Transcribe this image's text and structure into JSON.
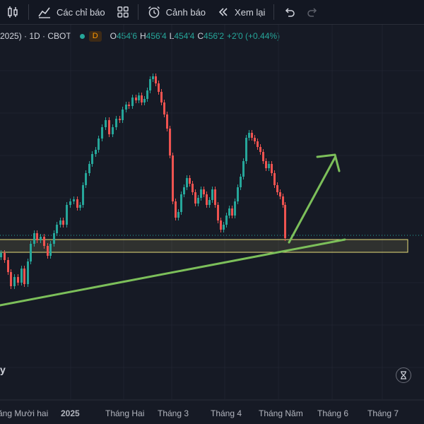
{
  "toolbar": {
    "indicators_label": "Các chỉ báo",
    "alerts_label": "Cảnh báo",
    "replay_label": "Xem lại"
  },
  "legend": {
    "symbol": "2025) · 1D · CBOT",
    "badge": "D",
    "open": "454'6",
    "high": "456'4",
    "low": "454'4",
    "close": "456'2",
    "change": "+2'0 (+0.44%)"
  },
  "axis": {
    "x_ticks": [
      "ăng Mười hai",
      "2025",
      "Tháng Hai",
      "Tháng 3",
      "Tháng 4",
      "Tháng Năm",
      "Tháng 6",
      "Tháng 7"
    ]
  },
  "colors": {
    "up": "#26a69a",
    "down": "#ef5350",
    "trendline": "#7cbf5a",
    "zone_border": "#e8df7a",
    "background": "#161a25"
  },
  "watermark_fragment": "y"
}
